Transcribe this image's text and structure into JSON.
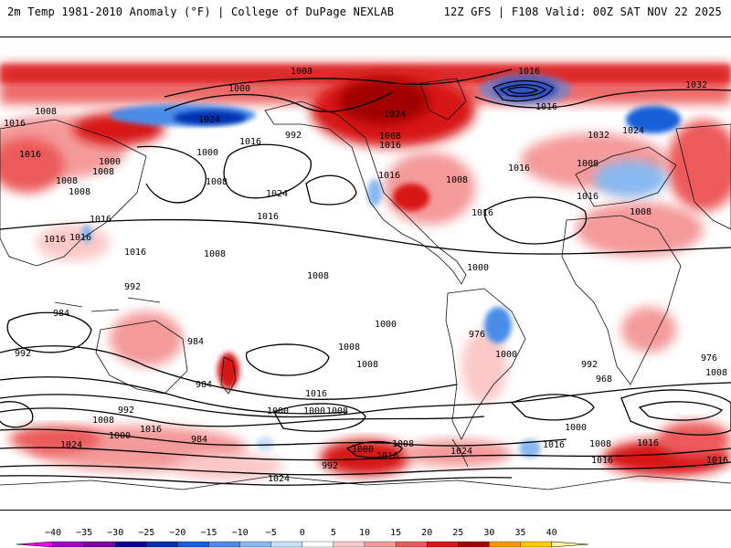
{
  "header": {
    "left": "2m Temp 1981-2010 Anomaly (°F) | College of DuPage NEXLAB",
    "right": "12Z GFS | F108 Valid: 00Z SAT NOV 22 2025"
  },
  "colors": {
    "contour": "#000000",
    "coast": "#111111",
    "background": "#ffffff"
  },
  "isobar_labels": [
    "1008",
    "1016",
    "1000",
    "1008",
    "1016",
    "1032",
    "1016",
    "1024",
    "1032",
    "1024",
    "1016",
    "1000",
    "1008",
    "992",
    "1016",
    "1024",
    "1008",
    "1016",
    "1000",
    "1008",
    "1016",
    "1008",
    "1016",
    "1016",
    "1024",
    "1016",
    "1008",
    "1008",
    "1016",
    "1008",
    "1008",
    "1016",
    "1016",
    "1008",
    "1016",
    "1016",
    "1008",
    "1000",
    "992",
    "976",
    "984",
    "992",
    "984",
    "1000",
    "1008",
    "1000",
    "1008",
    "992",
    "968",
    "976",
    "992",
    "984",
    "1000",
    "1000",
    "1008",
    "1016",
    "1008",
    "1016",
    "1000",
    "984",
    "1024",
    "992",
    "1000",
    "1008",
    "1016",
    "1024",
    "1016",
    "1008",
    "1016",
    "1016",
    "1016",
    "1008",
    "1000",
    "1024"
  ],
  "colorbar": {
    "ticks": [
      "−40",
      "−35",
      "−30",
      "−25",
      "−20",
      "−15",
      "−10",
      "−5",
      "0",
      "5",
      "10",
      "15",
      "20",
      "25",
      "30",
      "35",
      "40"
    ],
    "colors": [
      "#f000f0",
      "#a000d0",
      "#8000a8",
      "#100090",
      "#0030b0",
      "#1560d8",
      "#4a8ce8",
      "#88b8f0",
      "#c8e0f8",
      "#ffffff",
      "#fcc8c8",
      "#f49a9a",
      "#ec5a5a",
      "#d81818",
      "#a00000",
      "#ff9800",
      "#ffc800",
      "#fff0a0"
    ]
  }
}
